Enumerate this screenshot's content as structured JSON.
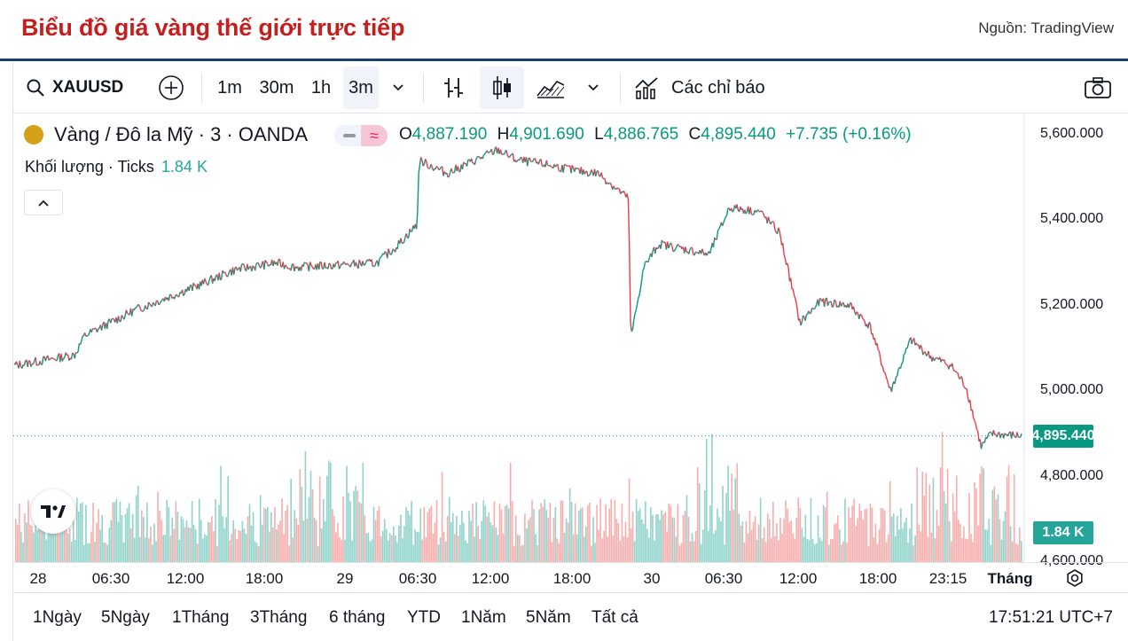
{
  "page": {
    "title": "Biểu đồ giá vàng thế giới trực tiếp",
    "source": "Nguồn: TradingView"
  },
  "toolbar": {
    "symbol": "XAUUSD",
    "intervals": [
      "1m",
      "30m",
      "1h",
      "3m"
    ],
    "active_interval": "3m",
    "indicators_label": "Các chỉ báo"
  },
  "legend": {
    "name": "Vàng / Đô la Mỹ · 3 · OANDA",
    "o_key": "O",
    "o": "4,887.190",
    "h_key": "H",
    "h": "4,901.690",
    "l_key": "L",
    "l": "4,886.765",
    "c_key": "C",
    "c": "4,895.440",
    "change": "+7.735 (+0.16%)",
    "volume_label": "Khối lượng · Ticks",
    "volume_value": "1.84 K"
  },
  "chart_data": {
    "type": "line",
    "title": "Vàng / Đô la Mỹ · 3 · OANDA",
    "xlabel": "",
    "ylabel": "",
    "ylim": [
      4600,
      5650
    ],
    "y_ticks": [
      "5,600.000",
      "5,400.000",
      "5,200.000",
      "5,000.000",
      "4,800.000",
      "4,600.000"
    ],
    "x_ticks": [
      "28",
      "06:30",
      "12:00",
      "18:00",
      "29",
      "06:30",
      "12:00",
      "18:00",
      "30",
      "06:30",
      "12:00",
      "18:00",
      "23:15",
      "Tháng"
    ],
    "last_price": "4,895.440",
    "last_volume": "1.84 K",
    "series": [
      {
        "name": "XAUUSD",
        "t": [
          0,
          0.06,
          0.07,
          0.12,
          0.18,
          0.22,
          0.26,
          0.28,
          0.32,
          0.36,
          0.38,
          0.4,
          0.402,
          0.43,
          0.48,
          0.5,
          0.53,
          0.56,
          0.58,
          0.61,
          0.612,
          0.625,
          0.64,
          0.69,
          0.71,
          0.74,
          0.76,
          0.78,
          0.8,
          0.83,
          0.85,
          0.87,
          0.89,
          0.91,
          0.93,
          0.945,
          0.96,
          0.97,
          1.0
        ],
        "values": [
          5060,
          5085,
          5130,
          5190,
          5245,
          5285,
          5300,
          5290,
          5295,
          5300,
          5340,
          5390,
          5540,
          5510,
          5565,
          5540,
          5530,
          5515,
          5510,
          5450,
          5120,
          5290,
          5345,
          5320,
          5430,
          5420,
          5370,
          5160,
          5210,
          5200,
          5150,
          5000,
          5120,
          5080,
          5060,
          5010,
          4870,
          4900,
          4895
        ]
      }
    ]
  },
  "bottom": {
    "ranges": [
      "1Ngày",
      "5Ngày",
      "1Tháng",
      "3Tháng",
      "6 tháng",
      "YTD",
      "1Năm",
      "5Năm",
      "Tất cả"
    ],
    "clock": "17:51:21 UTC+7"
  },
  "colors": {
    "up": "#089981",
    "down": "#f23645",
    "title": "#c41f1f",
    "rule": "#1b3f6b"
  }
}
